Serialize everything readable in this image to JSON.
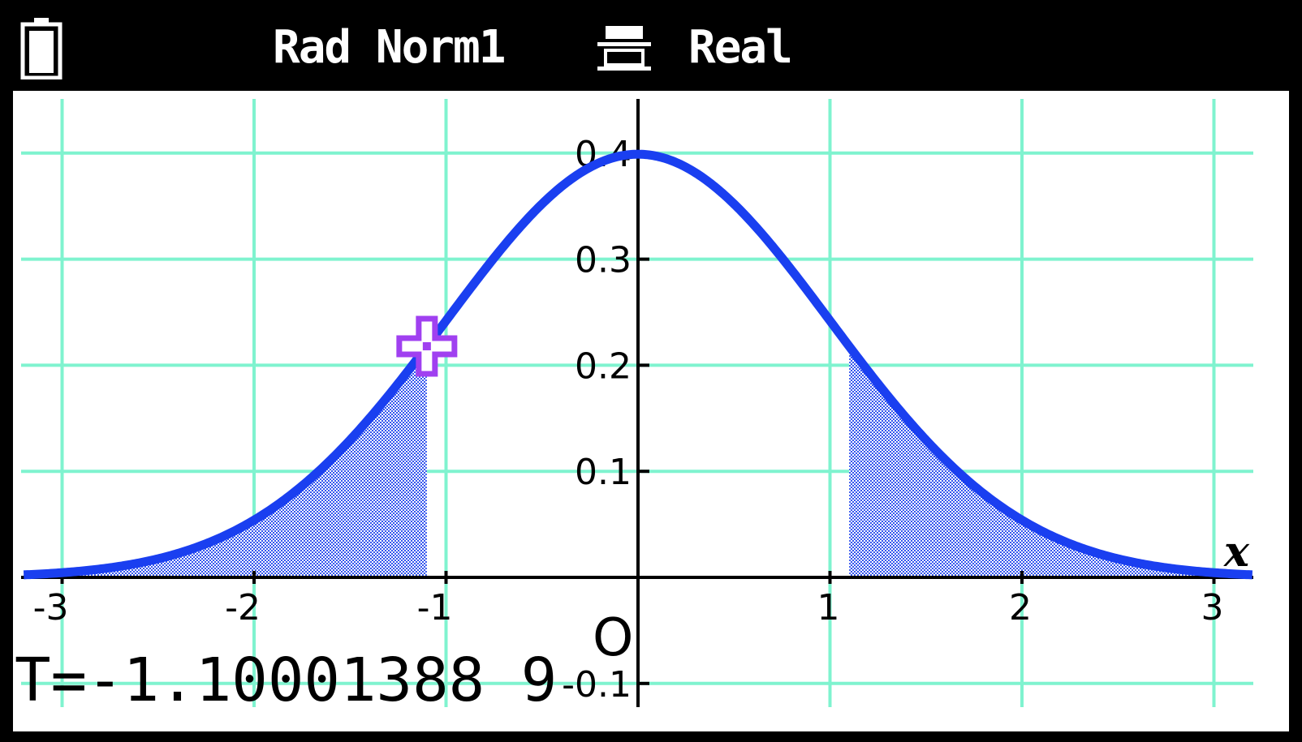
{
  "status_bar": {
    "battery_icon": "battery-icon",
    "mode": "Rad Norm1",
    "display_icon": "display-format-icon",
    "complex_mode": "Real"
  },
  "colors": {
    "grid": "#7ff3cf",
    "curve": "#1a3ff0",
    "shade": "#3556ee",
    "cursor": "#a040f0",
    "background": "#ffffff",
    "statusbar": "#000000"
  },
  "readout": {
    "t_value": "T=-1.10001388 9"
  },
  "chart_data": {
    "type": "area",
    "function": "standard normal PDF",
    "xlim": [
      -3.2,
      3.2
    ],
    "ylim": [
      -0.13,
      0.45
    ],
    "x_ticks": [
      -3,
      -2,
      -1,
      1,
      2,
      3
    ],
    "x_tick_labels": [
      "-3",
      "-2",
      "-1",
      "1",
      "2",
      "3"
    ],
    "y_ticks": [
      0.4,
      0.3,
      0.2,
      0.1,
      -0.1
    ],
    "y_tick_labels": [
      "0.4",
      "0.3",
      "0.2",
      "0.1",
      "-0.1"
    ],
    "origin_label": "O",
    "xlabel": "x",
    "grid": true,
    "shaded_regions": [
      {
        "x_from": -3.2,
        "x_to": -1.10001389
      },
      {
        "x_from": 1.10001389,
        "x_to": 3.2
      }
    ],
    "cursor": {
      "x": -1.10001389,
      "y": 0.2179
    }
  }
}
